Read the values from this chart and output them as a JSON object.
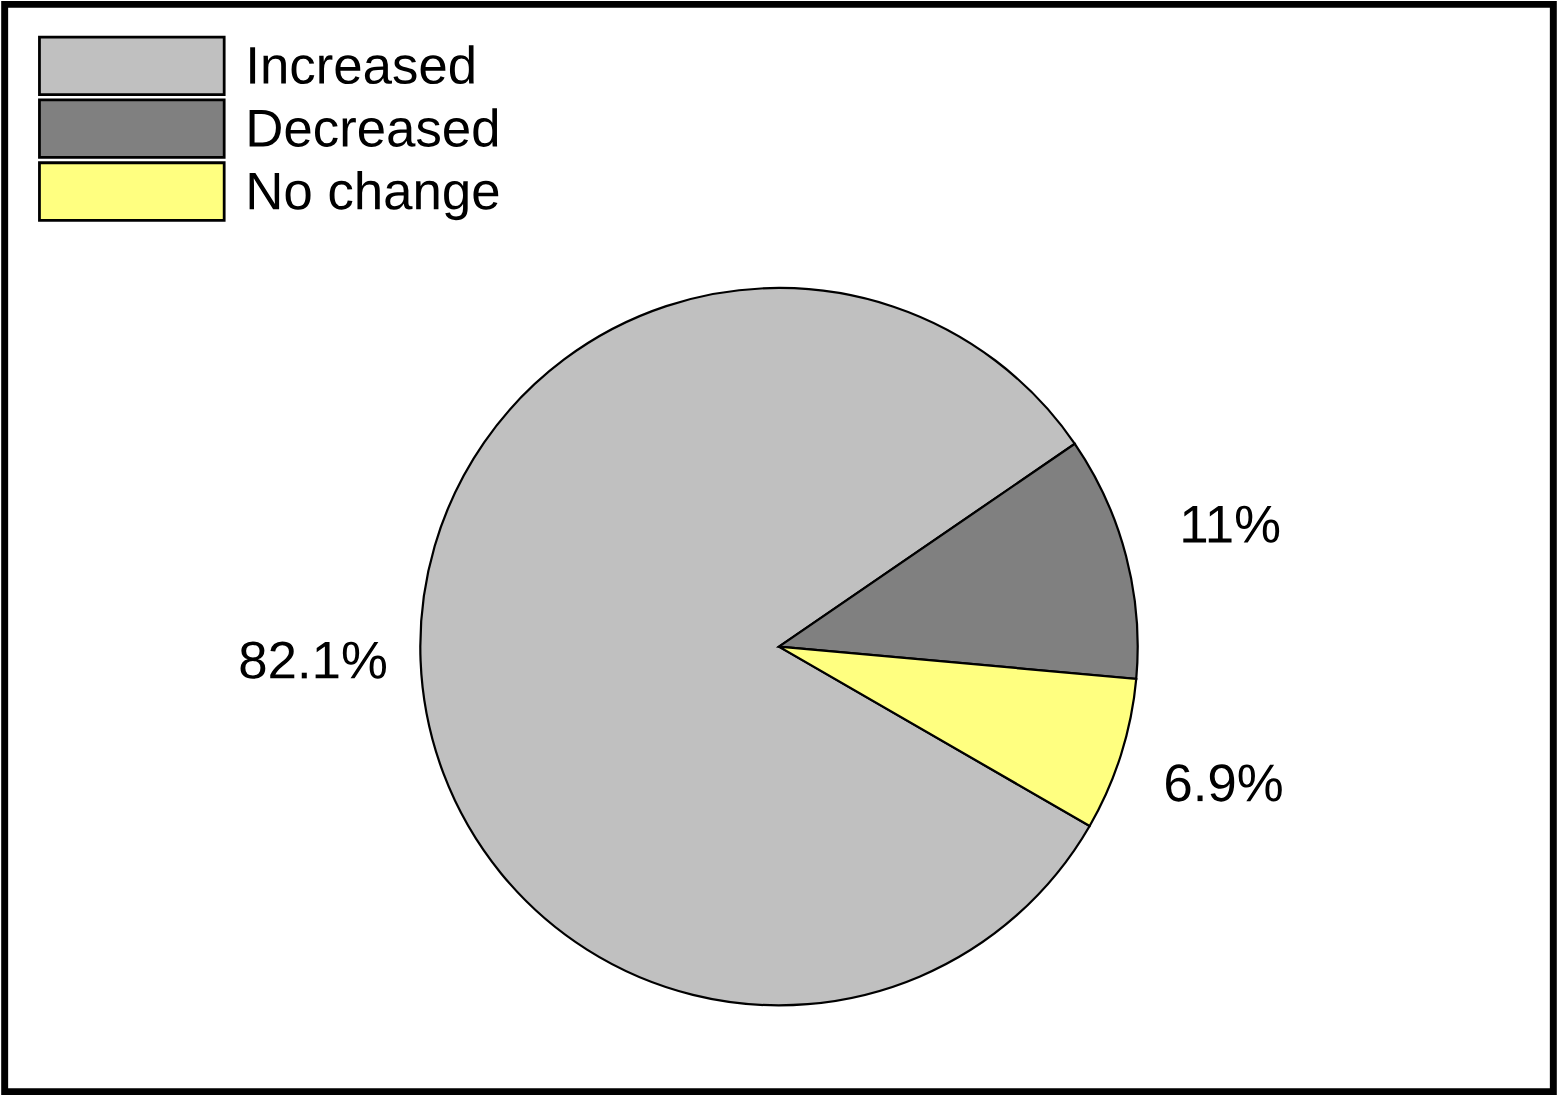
{
  "chart_data": {
    "type": "pie",
    "categories": [
      "Increased",
      "Decreased",
      "No change"
    ],
    "values": [
      82.1,
      11,
      6.9
    ],
    "value_labels": [
      "82.1%",
      "11%",
      "6.9%"
    ],
    "colors": [
      "#c0c0c0",
      "#808080",
      "#ffff80"
    ],
    "legend": "top left"
  }
}
